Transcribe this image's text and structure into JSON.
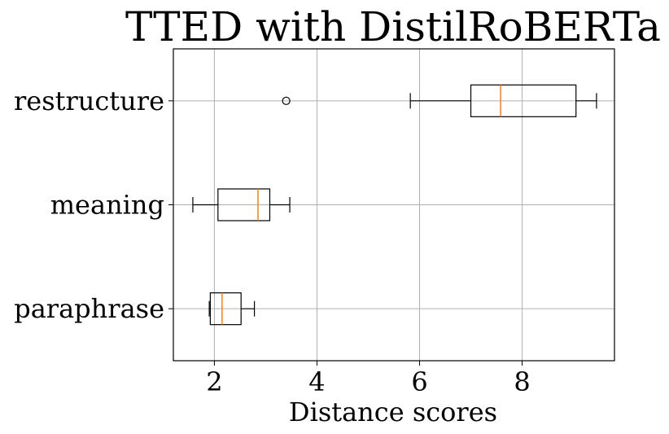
{
  "chart_data": {
    "type": "boxplot",
    "orientation": "horizontal",
    "title": "TTED with DistilRoBERTa",
    "xlabel": "Distance scores",
    "ylabel": "",
    "xlim": [
      1.2,
      9.8
    ],
    "xticks": [
      2,
      4,
      6,
      8
    ],
    "grid": true,
    "categories": [
      "paraphrase",
      "meaning",
      "restructure"
    ],
    "boxes": [
      {
        "label": "paraphrase",
        "whisker_low": 1.9,
        "q1": 1.92,
        "median": 2.15,
        "q3": 2.52,
        "whisker_high": 2.78,
        "outliers": []
      },
      {
        "label": "meaning",
        "whisker_low": 1.58,
        "q1": 2.07,
        "median": 2.85,
        "q3": 3.08,
        "whisker_high": 3.47,
        "outliers": []
      },
      {
        "label": "restructure",
        "whisker_low": 5.82,
        "q1": 7.0,
        "median": 7.58,
        "q3": 9.05,
        "whisker_high": 9.45,
        "outliers": [
          3.4
        ]
      }
    ],
    "colors": {
      "box": "#000000",
      "median": "#ff7f0e",
      "grid": "#b0b0b0"
    }
  }
}
